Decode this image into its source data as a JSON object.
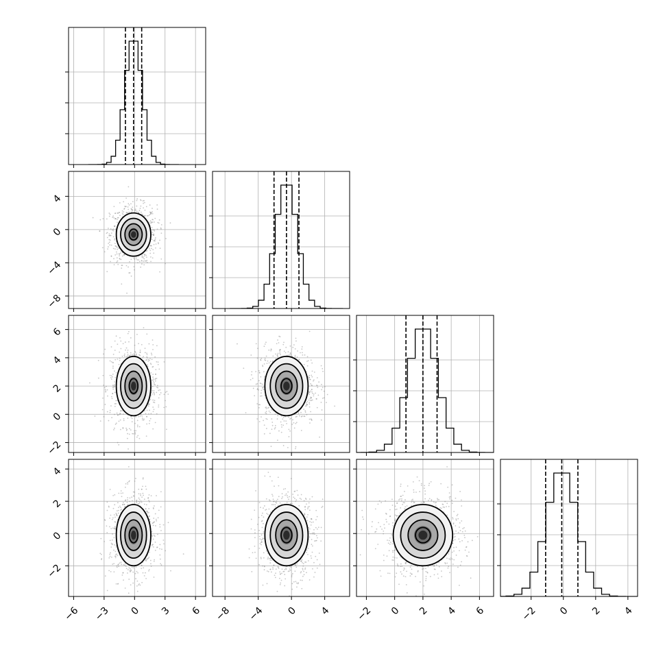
{
  "chart_data": {
    "type": "corner",
    "n_params": 4,
    "params": [
      {
        "range": [
          -6.5,
          7.0
        ],
        "mean": -0.1,
        "sd": 0.85,
        "ticks": [
          -6,
          -3,
          0,
          3,
          6
        ],
        "tick_labels": [
          "−6",
          "−3",
          "0",
          "3",
          "6"
        ],
        "quantiles": [
          -0.9,
          -0.1,
          0.7
        ]
      },
      {
        "range": [
          -9.5,
          7.0
        ],
        "mean": -0.6,
        "sd": 1.3,
        "ticks": [
          -8,
          -4,
          0,
          4
        ],
        "tick_labels": [
          "−8",
          "−4",
          "0",
          "4"
        ],
        "quantiles": [
          -2.1,
          -0.6,
          0.9
        ]
      },
      {
        "range": [
          -2.7,
          7.0
        ],
        "mean": 2.0,
        "sd": 1.05,
        "ticks": [
          -2,
          0,
          2,
          4,
          6
        ],
        "tick_labels": [
          "−2",
          "0",
          "2",
          "4",
          "6"
        ],
        "quantiles": [
          0.8,
          2.0,
          3.0
        ]
      },
      {
        "range": [
          -3.9,
          4.6
        ],
        "mean": -0.1,
        "sd": 0.95,
        "ticks": [
          -2,
          0,
          2,
          4
        ],
        "tick_labels": [
          "−2",
          "0",
          "2",
          "4"
        ],
        "quantiles": [
          -1.1,
          -0.1,
          0.9
        ]
      }
    ],
    "grid": true,
    "scatter_color": "#808080",
    "contour_color": "#000000",
    "histogram_bins": 20
  }
}
